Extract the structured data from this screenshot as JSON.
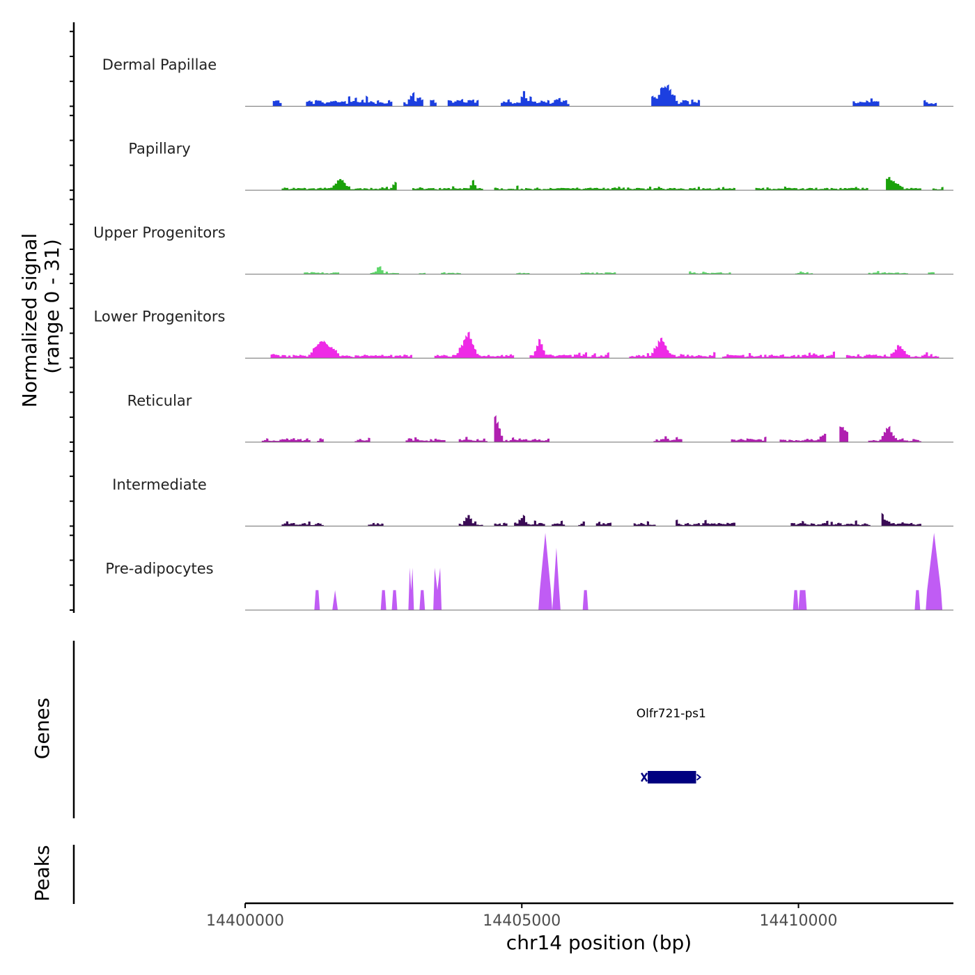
{
  "chart_data": {
    "type": "area",
    "chromosome": "chr14",
    "xlabel": "chr14 position (bp)",
    "xlim": [
      14400000,
      14412800
    ],
    "x_ticks": [
      14400000,
      14405000,
      14410000
    ],
    "x_tick_labels": [
      "14400000",
      "14405000",
      "14410000"
    ],
    "ylabel_line1": "Normalized signal",
    "ylabel_line2": "(range 0 - 31)",
    "ylim": [
      0,
      31
    ],
    "tracks": [
      {
        "name": "Dermal Papillae",
        "color": "#1c3fe0",
        "seed": 11,
        "density": 0.55,
        "base": 2.6,
        "spread": 2.3,
        "peaks": [
          [
            14400700,
            2.2,
            80
          ],
          [
            14403000,
            1.6,
            80
          ],
          [
            14405000,
            1.4,
            60
          ],
          [
            14407600,
            2.6,
            200
          ],
          [
            14410700,
            3.2,
            220
          ],
          [
            14412000,
            2.3,
            120
          ]
        ],
        "gaps": [
          [
            14405850,
            14407150
          ],
          [
            14408400,
            14410700
          ]
        ],
        "end": 14412500
      },
      {
        "name": "Papillary",
        "color": "#1aa10a",
        "seed": 23,
        "density": 0.85,
        "base": 1.0,
        "spread": 0.8,
        "peaks": [
          [
            14401700,
            1.5,
            180
          ],
          [
            14402700,
            1.2,
            100
          ],
          [
            14404100,
            1.2,
            80
          ],
          [
            14411600,
            1.6,
            300
          ]
        ],
        "gaps": [],
        "end": 14412600
      },
      {
        "name": "Upper Progenitors",
        "color": "#5ed76a",
        "seed": 37,
        "density": 0.6,
        "base": 0.8,
        "spread": 0.6,
        "peaks": [
          [
            14403400,
            5.0,
            80
          ],
          [
            14402400,
            1.2,
            80
          ],
          [
            14404700,
            1.0,
            80
          ],
          [
            14409200,
            0.9,
            80
          ]
        ],
        "gaps": [
          [
            14406700,
            14407500
          ],
          [
            14408750,
            14409600
          ]
        ],
        "end": 14412500
      },
      {
        "name": "Lower Progenitors",
        "color": "#ee2ae6",
        "seed": 41,
        "density": 0.8,
        "base": 1.5,
        "spread": 1.4,
        "peaks": [
          [
            14401400,
            2.4,
            300
          ],
          [
            14404000,
            3.6,
            200
          ],
          [
            14405300,
            2.5,
            120
          ],
          [
            14407500,
            2.8,
            200
          ],
          [
            14411800,
            1.8,
            150
          ]
        ],
        "gaps": [],
        "end": 14412600
      },
      {
        "name": "Reticular",
        "color": "#b01fb0",
        "seed": 53,
        "density": 0.72,
        "base": 1.4,
        "spread": 1.2,
        "peaks": [
          [
            14404500,
            3.4,
            150
          ],
          [
            14401600,
            2.0,
            200
          ],
          [
            14405700,
            2.1,
            100
          ],
          [
            14410700,
            2.2,
            400
          ],
          [
            14411600,
            2.0,
            150
          ]
        ],
        "gaps": [
          [
            14406000,
            14407100
          ]
        ],
        "end": 14412200
      },
      {
        "name": "Intermediate",
        "color": "#3a0a55",
        "seed": 67,
        "density": 0.6,
        "base": 1.3,
        "spread": 1.2,
        "peaks": [
          [
            14401600,
            2.1,
            150
          ],
          [
            14404000,
            1.5,
            100
          ],
          [
            14405000,
            1.4,
            80
          ],
          [
            14407700,
            1.7,
            120
          ],
          [
            14411500,
            1.6,
            80
          ]
        ],
        "gaps": [],
        "end": 14412200
      },
      {
        "name": "Pre-adipocytes",
        "color": "#c05cf4",
        "seed": 79,
        "density": 0,
        "base": 0,
        "spread": 0,
        "spikes": [
          [
            14401250,
            14401350,
            8,
            8
          ],
          [
            14401550,
            14401700,
            8,
            0
          ],
          [
            14402450,
            14402550,
            8,
            8
          ],
          [
            14402650,
            14402750,
            8,
            8
          ],
          [
            14402950,
            14403050,
            8,
            17
          ],
          [
            14403150,
            14403250,
            8,
            8
          ],
          [
            14403400,
            14403550,
            8,
            17
          ],
          [
            14405300,
            14405550,
            31,
            8
          ],
          [
            14405550,
            14405700,
            25,
            8
          ],
          [
            14406100,
            14406200,
            8,
            8
          ],
          [
            14409900,
            14410000,
            8,
            8
          ],
          [
            14410000,
            14410150,
            8,
            8
          ],
          [
            14412100,
            14412200,
            8,
            8
          ],
          [
            14412300,
            14412600,
            31,
            8
          ]
        ],
        "gaps": [],
        "end": 14412600
      }
    ],
    "genes": {
      "track_label": "Genes",
      "items": [
        {
          "name": "Olfr721-ps1",
          "start": 14407200,
          "end": 14408200,
          "strand": "-",
          "color": "#000080"
        }
      ]
    },
    "peaks_track": {
      "track_label": "Peaks",
      "items": []
    }
  }
}
